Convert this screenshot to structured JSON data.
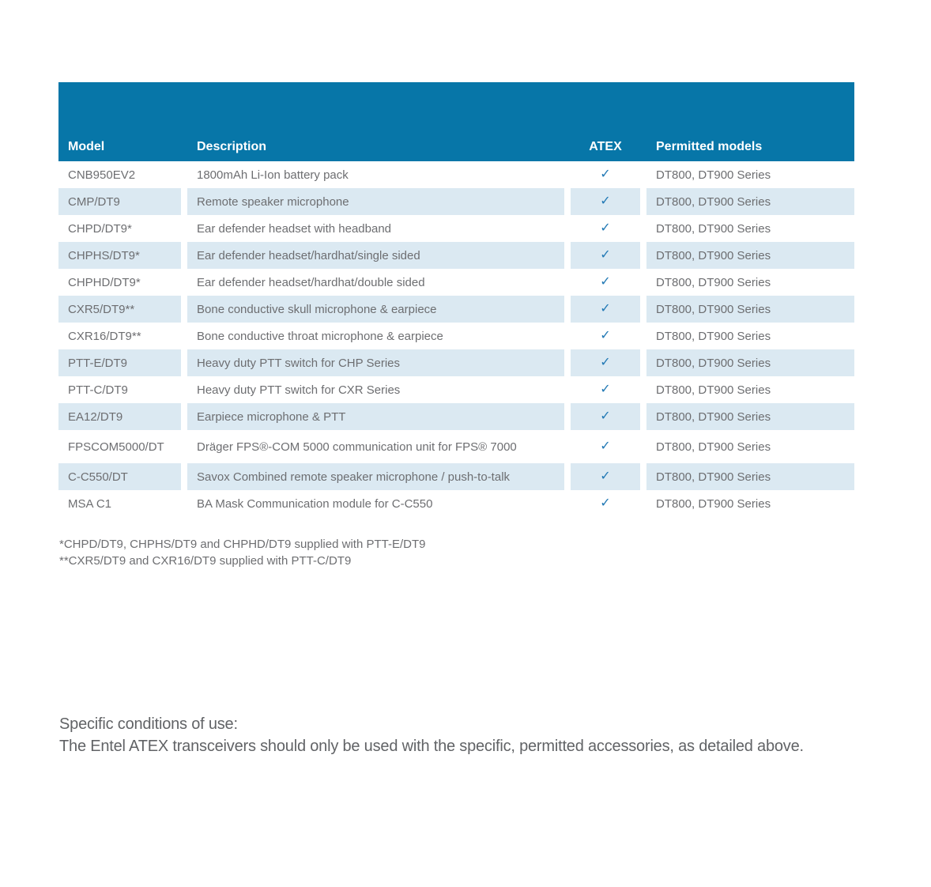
{
  "colors": {
    "header_bg": "#0776a8",
    "header_text": "#ffffff",
    "row_stripe": "#dbe9f2",
    "body_text": "#6d6e71",
    "check": "#2279b5",
    "paragraph_text": "#616366",
    "page_bg": "#ffffff"
  },
  "table": {
    "columns": [
      {
        "key": "model",
        "label": "Model"
      },
      {
        "key": "description",
        "label": "Description"
      },
      {
        "key": "atex",
        "label": "ATEX"
      },
      {
        "key": "permitted",
        "label": "Permitted models"
      }
    ],
    "check_glyph": "✓",
    "rows": [
      {
        "model": "CNB950EV2",
        "description": "1800mAh Li-Ion battery pack",
        "atex": "✓",
        "permitted": "DT800, DT900 Series"
      },
      {
        "model": "CMP/DT9",
        "description": "Remote speaker microphone",
        "atex": "✓",
        "permitted": "DT800, DT900 Series"
      },
      {
        "model": "CHPD/DT9*",
        "description": "Ear defender headset with headband",
        "atex": "✓",
        "permitted": "DT800, DT900 Series"
      },
      {
        "model": "CHPHS/DT9*",
        "description": "Ear defender headset/hardhat/single sided",
        "atex": "✓",
        "permitted": "DT800, DT900 Series"
      },
      {
        "model": "CHPHD/DT9*",
        "description": "Ear defender headset/hardhat/double sided",
        "atex": "✓",
        "permitted": "DT800, DT900 Series"
      },
      {
        "model": "CXR5/DT9**",
        "description": "Bone conductive skull microphone & earpiece",
        "atex": "✓",
        "permitted": "DT800, DT900 Series"
      },
      {
        "model": "CXR16/DT9**",
        "description": "Bone conductive throat microphone & earpiece",
        "atex": "✓",
        "permitted": "DT800, DT900 Series"
      },
      {
        "model": "PTT-E/DT9",
        "description": "Heavy duty PTT switch for CHP Series",
        "atex": "✓",
        "permitted": "DT800, DT900 Series"
      },
      {
        "model": "PTT-C/DT9",
        "description": "Heavy duty PTT switch for CXR Series",
        "atex": "✓",
        "permitted": "DT800, DT900 Series"
      },
      {
        "model": "EA12/DT9",
        "description": "Earpiece microphone & PTT",
        "atex": "✓",
        "permitted": "DT800, DT900 Series"
      },
      {
        "model": "FPSCOM5000/DT",
        "description": "Dräger FPS®-COM 5000 communication unit for FPS® 7000",
        "atex": "✓",
        "permitted": "DT800, DT900 Series"
      },
      {
        "model": "C-C550/DT",
        "description": "Savox Combined remote speaker microphone / push-to-talk",
        "atex": "✓",
        "permitted": "DT800, DT900 Series"
      },
      {
        "model": "MSA C1",
        "description": "BA Mask Communication module for C-C550",
        "atex": "✓",
        "permitted": "DT800, DT900 Series"
      }
    ]
  },
  "footnotes": [
    "*CHPD/DT9, CHPHS/DT9 and CHPHD/DT9 supplied with PTT-E/DT9",
    "**CXR5/DT9 and CXR16/DT9 supplied with PTT-C/DT9"
  ],
  "conditions": {
    "heading": "Specific conditions of use:",
    "body": "The Entel ATEX transceivers should only be used with the specific, permitted accessories, as detailed above."
  }
}
